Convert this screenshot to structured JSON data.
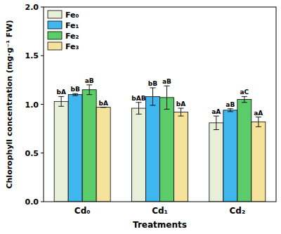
{
  "chart_data": {
    "type": "bar",
    "x_label": "Treatments",
    "y_label": "Chlorophyll concentration (mg·g⁻¹ FW)",
    "categories": [
      "Cd₀",
      "Cd₁",
      "Cd₂"
    ],
    "series": [
      {
        "name": "Fe₀",
        "color": "#e8efd8",
        "values": [
          1.03,
          0.96,
          0.81
        ],
        "errors": [
          0.05,
          0.06,
          0.07
        ],
        "letters": [
          "bA",
          "bAB",
          "aA"
        ]
      },
      {
        "name": "Fe₁",
        "color": "#3fb7ee",
        "values": [
          1.1,
          1.08,
          0.94
        ],
        "errors": [
          0.01,
          0.09,
          0.015
        ],
        "letters": [
          "bB",
          "bB",
          "aB"
        ]
      },
      {
        "name": "Fe₂",
        "color": "#5ccc6a",
        "values": [
          1.15,
          1.07,
          1.05
        ],
        "errors": [
          0.05,
          0.12,
          0.03
        ],
        "letters": [
          "aB",
          "aB",
          "aC"
        ]
      },
      {
        "name": "Fe₃",
        "color": "#f5e39b",
        "values": [
          0.97,
          0.92,
          0.82
        ],
        "errors": [
          0.0,
          0.04,
          0.05
        ],
        "letters": [
          "bA",
          "bA",
          "aA"
        ]
      }
    ],
    "ylim": [
      0,
      2.0
    ],
    "yticks": [
      {
        "value": 0,
        "label": "0.0"
      },
      0.5,
      {
        "value": 1.0,
        "label": "1.0"
      },
      1.5,
      {
        "value": 2.0,
        "label": "2.0"
      }
    ],
    "legend": "upper left",
    "grid": false
  }
}
